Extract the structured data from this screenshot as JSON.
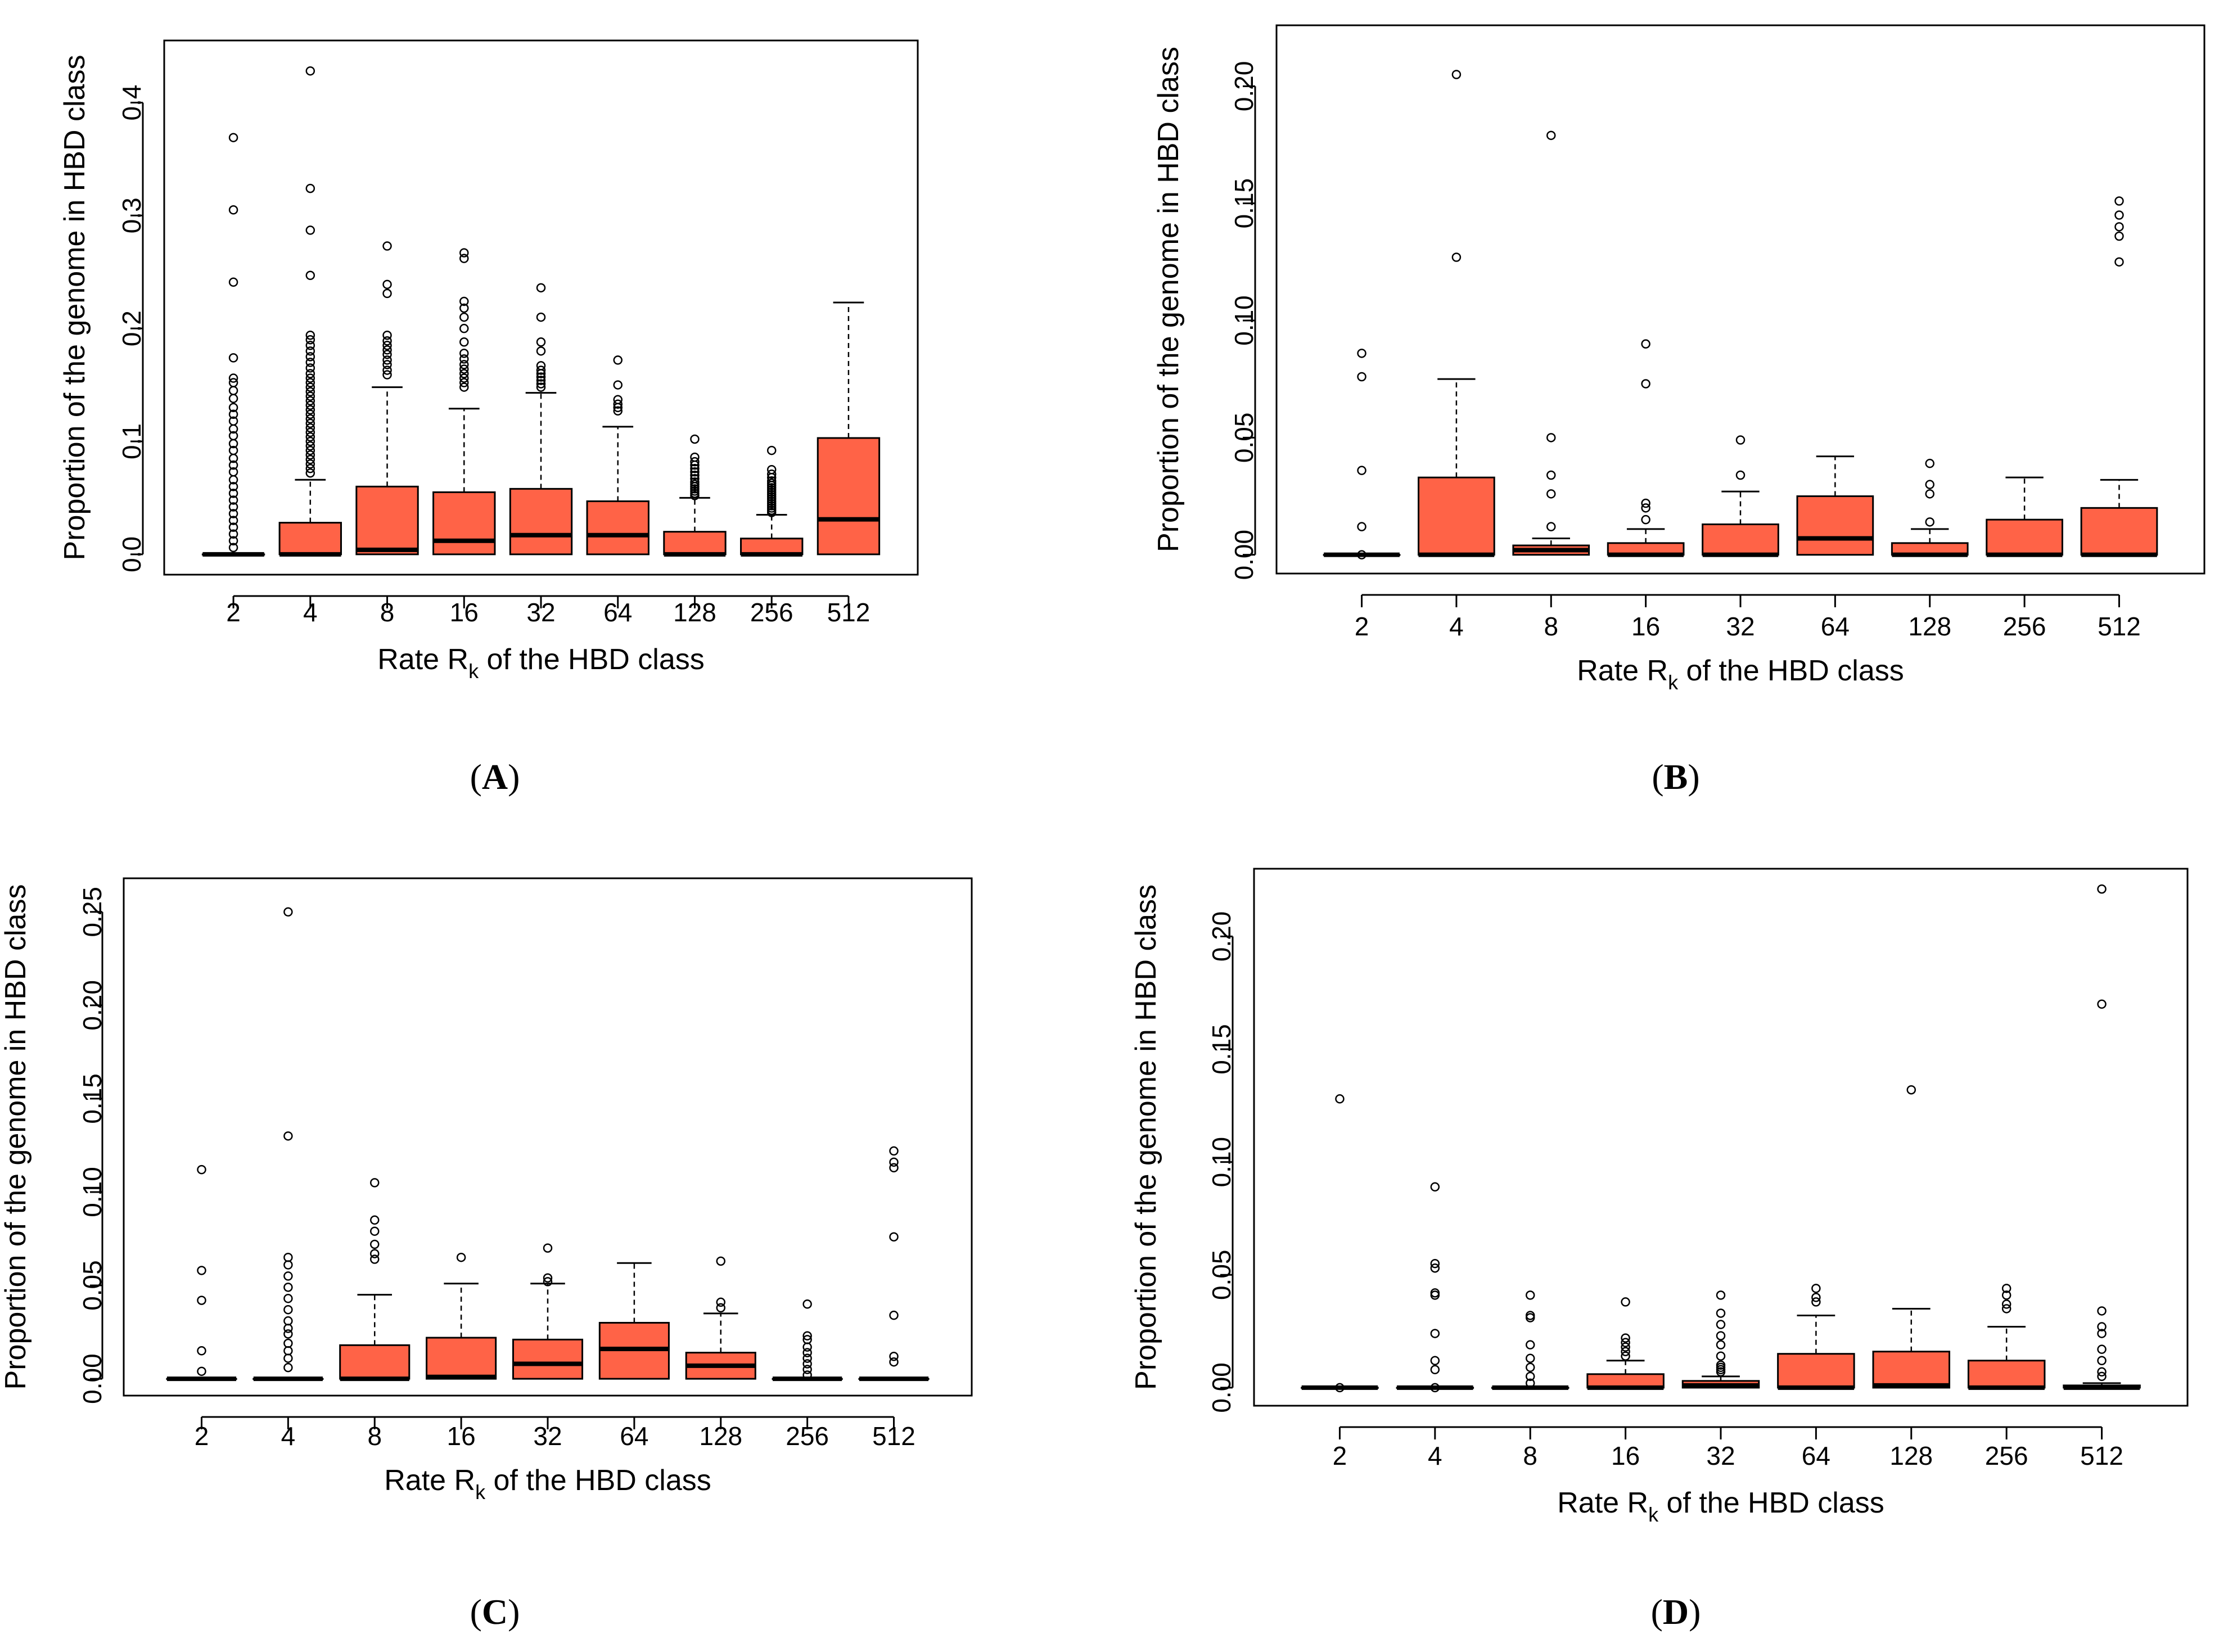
{
  "chart_data": [
    {
      "panel": "A",
      "type": "boxplot",
      "categories": [
        "2",
        "4",
        "8",
        "16",
        "32",
        "64",
        "128",
        "256",
        "512"
      ],
      "xlabel_main": "Rate R",
      "xlabel_sub": "k",
      "xlabel_rest": " of the HBD class",
      "ylabel": "Proportion of the genome in HBD class",
      "ylim": [
        -0.018,
        0.455
      ],
      "yticks": [
        0.0,
        0.1,
        0.2,
        0.3,
        0.4
      ],
      "ytick_labels": [
        "0.0",
        "0.1",
        "0.2",
        "0.3",
        "0.4"
      ],
      "boxes": [
        {
          "q1": 0.0,
          "median": 0.0,
          "q3": 0.0,
          "whisker_low": 0.0,
          "whisker_high": 0.0,
          "outliers": [
            0.369,
            0.305,
            0.241,
            0.174,
            0.156,
            0.152,
            0.145,
            0.138,
            0.13,
            0.124,
            0.118,
            0.111,
            0.105,
            0.098,
            0.092,
            0.085,
            0.079,
            0.073,
            0.066,
            0.06,
            0.054,
            0.048,
            0.042,
            0.036,
            0.03,
            0.024,
            0.018,
            0.012,
            0.006
          ]
        },
        {
          "q1": 0.0,
          "median": 0.0,
          "q3": 0.028,
          "whisker_low": 0.0,
          "whisker_high": 0.066,
          "outliers": [
            0.428,
            0.324,
            0.287,
            0.247,
            0.194,
            0.19,
            0.185,
            0.18,
            0.175,
            0.17,
            0.165,
            0.16,
            0.156,
            0.152,
            0.148,
            0.144,
            0.14,
            0.136,
            0.132,
            0.128,
            0.124,
            0.12,
            0.116,
            0.112,
            0.108,
            0.104,
            0.1,
            0.096,
            0.092,
            0.088,
            0.084,
            0.08,
            0.076,
            0.072
          ]
        },
        {
          "q1": 0.0,
          "median": 0.004,
          "q3": 0.06,
          "whisker_low": 0.0,
          "whisker_high": 0.148,
          "outliers": [
            0.273,
            0.239,
            0.231,
            0.194,
            0.189,
            0.185,
            0.181,
            0.177,
            0.172,
            0.168,
            0.163,
            0.159
          ]
        },
        {
          "q1": 0.0,
          "median": 0.012,
          "q3": 0.055,
          "whisker_low": 0.0,
          "whisker_high": 0.129,
          "outliers": [
            0.267,
            0.262,
            0.224,
            0.218,
            0.21,
            0.2,
            0.188,
            0.178,
            0.173,
            0.168,
            0.164,
            0.16,
            0.156,
            0.152,
            0.148
          ]
        },
        {
          "q1": 0.0,
          "median": 0.017,
          "q3": 0.058,
          "whisker_low": 0.0,
          "whisker_high": 0.143,
          "outliers": [
            0.236,
            0.21,
            0.188,
            0.18,
            0.167,
            0.163,
            0.16,
            0.157,
            0.154,
            0.151,
            0.148
          ]
        },
        {
          "q1": 0.0,
          "median": 0.017,
          "q3": 0.047,
          "whisker_low": 0.0,
          "whisker_high": 0.113,
          "outliers": [
            0.172,
            0.15,
            0.137,
            0.133,
            0.13,
            0.127
          ]
        },
        {
          "q1": 0.0,
          "median": 0.0,
          "q3": 0.02,
          "whisker_low": 0.0,
          "whisker_high": 0.05,
          "outliers": [
            0.102,
            0.086,
            0.082,
            0.079,
            0.076,
            0.073,
            0.07,
            0.067,
            0.064,
            0.062,
            0.06,
            0.058,
            0.056,
            0.054,
            0.052
          ]
        },
        {
          "q1": 0.0,
          "median": 0.0,
          "q3": 0.014,
          "whisker_low": 0.0,
          "whisker_high": 0.035,
          "outliers": [
            0.092,
            0.075,
            0.071,
            0.068,
            0.065,
            0.063,
            0.061,
            0.059,
            0.057,
            0.055,
            0.053,
            0.051,
            0.049,
            0.047,
            0.045,
            0.043,
            0.041,
            0.039,
            0.037
          ]
        },
        {
          "q1": 0.0,
          "median": 0.031,
          "q3": 0.103,
          "whisker_low": 0.0,
          "whisker_high": 0.223,
          "outliers": []
        }
      ]
    },
    {
      "panel": "B",
      "type": "boxplot",
      "categories": [
        "2",
        "4",
        "8",
        "16",
        "32",
        "64",
        "128",
        "256",
        "512"
      ],
      "xlabel_main": "Rate R",
      "xlabel_sub": "k",
      "xlabel_rest": " of the HBD class",
      "ylabel": "Proportion of the genome in HBD class",
      "ylim": [
        -0.008,
        0.226
      ],
      "yticks": [
        0.0,
        0.05,
        0.1,
        0.15,
        0.2
      ],
      "ytick_labels": [
        "0.00",
        "0.05",
        "0.10",
        "0.15",
        "0.20"
      ],
      "boxes": [
        {
          "q1": 0.0,
          "median": 0.0,
          "q3": 0.0,
          "whisker_low": 0.0,
          "whisker_high": 0.0,
          "outliers": [
            0.086,
            0.076,
            0.036,
            0.012,
            0.0
          ]
        },
        {
          "q1": 0.0,
          "median": 0.0,
          "q3": 0.033,
          "whisker_low": 0.0,
          "whisker_high": 0.075,
          "outliers": [
            0.205,
            0.127
          ]
        },
        {
          "q1": 0.0,
          "median": 0.002,
          "q3": 0.004,
          "whisker_low": 0.0,
          "whisker_high": 0.007,
          "outliers": [
            0.179,
            0.05,
            0.034,
            0.026,
            0.012
          ]
        },
        {
          "q1": 0.0,
          "median": 0.0,
          "q3": 0.005,
          "whisker_low": 0.0,
          "whisker_high": 0.011,
          "outliers": [
            0.09,
            0.073,
            0.022,
            0.02,
            0.015
          ]
        },
        {
          "q1": 0.0,
          "median": 0.0,
          "q3": 0.013,
          "whisker_low": 0.0,
          "whisker_high": 0.027,
          "outliers": [
            0.049,
            0.034
          ]
        },
        {
          "q1": 0.0,
          "median": 0.007,
          "q3": 0.025,
          "whisker_low": 0.0,
          "whisker_high": 0.042,
          "outliers": []
        },
        {
          "q1": 0.0,
          "median": 0.0,
          "q3": 0.005,
          "whisker_low": 0.0,
          "whisker_high": 0.011,
          "outliers": [
            0.039,
            0.03,
            0.026,
            0.014
          ]
        },
        {
          "q1": 0.0,
          "median": 0.0,
          "q3": 0.015,
          "whisker_low": 0.0,
          "whisker_high": 0.033,
          "outliers": []
        },
        {
          "q1": 0.0,
          "median": 0.0,
          "q3": 0.02,
          "whisker_low": 0.0,
          "whisker_high": 0.032,
          "outliers": [
            0.151,
            0.145,
            0.14,
            0.136,
            0.125
          ]
        }
      ]
    },
    {
      "panel": "C",
      "type": "boxplot",
      "categories": [
        "2",
        "4",
        "8",
        "16",
        "32",
        "64",
        "128",
        "256",
        "512"
      ],
      "xlabel_main": "Rate R",
      "xlabel_sub": "k",
      "xlabel_rest": " of the HBD class",
      "ylabel": "Proportion of the genome in HBD class",
      "ylim": [
        -0.009,
        0.268
      ],
      "yticks": [
        0.0,
        0.05,
        0.1,
        0.15,
        0.2,
        0.25
      ],
      "ytick_labels": [
        "0.00",
        "0.05",
        "0.10",
        "0.15",
        "0.20",
        "0.25"
      ],
      "boxes": [
        {
          "q1": 0.0,
          "median": 0.0,
          "q3": 0.0,
          "whisker_low": 0.0,
          "whisker_high": 0.0,
          "outliers": [
            0.112,
            0.058,
            0.042,
            0.015,
            0.004
          ]
        },
        {
          "q1": 0.0,
          "median": 0.0,
          "q3": 0.0,
          "whisker_low": 0.0,
          "whisker_high": 0.0,
          "outliers": [
            0.25,
            0.13,
            0.065,
            0.061,
            0.055,
            0.049,
            0.043,
            0.037,
            0.031,
            0.027,
            0.024,
            0.019,
            0.015,
            0.011,
            0.006
          ]
        },
        {
          "q1": 0.0,
          "median": 0.0,
          "q3": 0.018,
          "whisker_low": 0.0,
          "whisker_high": 0.045,
          "outliers": [
            0.105,
            0.085,
            0.079,
            0.072,
            0.067,
            0.064
          ]
        },
        {
          "q1": 0.0,
          "median": 0.001,
          "q3": 0.022,
          "whisker_low": 0.0,
          "whisker_high": 0.051,
          "outliers": [
            0.065
          ]
        },
        {
          "q1": 0.0,
          "median": 0.008,
          "q3": 0.021,
          "whisker_low": 0.0,
          "whisker_high": 0.051,
          "outliers": [
            0.07,
            0.054,
            0.052
          ]
        },
        {
          "q1": 0.0,
          "median": 0.016,
          "q3": 0.03,
          "whisker_low": 0.0,
          "whisker_high": 0.062,
          "outliers": []
        },
        {
          "q1": 0.0,
          "median": 0.007,
          "q3": 0.014,
          "whisker_low": 0.0,
          "whisker_high": 0.035,
          "outliers": [
            0.063,
            0.041,
            0.038
          ]
        },
        {
          "q1": 0.0,
          "median": 0.0,
          "q3": 0.0,
          "whisker_low": 0.0,
          "whisker_high": 0.0,
          "outliers": [
            0.04,
            0.023,
            0.021,
            0.017,
            0.014,
            0.011,
            0.008,
            0.005,
            0.002
          ]
        },
        {
          "q1": 0.0,
          "median": 0.0,
          "q3": 0.0,
          "whisker_low": 0.0,
          "whisker_high": 0.0,
          "outliers": [
            0.122,
            0.116,
            0.113,
            0.076,
            0.034,
            0.012,
            0.009
          ]
        }
      ]
    },
    {
      "panel": "D",
      "type": "boxplot",
      "categories": [
        "2",
        "4",
        "8",
        "16",
        "32",
        "64",
        "128",
        "256",
        "512"
      ],
      "xlabel_main": "Rate R",
      "xlabel_sub": "k",
      "xlabel_rest": " of the HBD class",
      "ylabel": "Proportion of the genome in HBD class",
      "ylim": [
        -0.008,
        0.23
      ],
      "yticks": [
        0.0,
        0.05,
        0.1,
        0.15,
        0.2
      ],
      "ytick_labels": [
        "0.00",
        "0.05",
        "0.10",
        "0.15",
        "0.20"
      ],
      "boxes": [
        {
          "q1": 0.0,
          "median": 0.0,
          "q3": 0.0,
          "whisker_low": 0.0,
          "whisker_high": 0.0,
          "outliers": [
            0.128,
            0.0
          ]
        },
        {
          "q1": 0.0,
          "median": 0.0,
          "q3": 0.0,
          "whisker_low": 0.0,
          "whisker_high": 0.0,
          "outliers": [
            0.089,
            0.055,
            0.053,
            0.042,
            0.041,
            0.024,
            0.012,
            0.008,
            0.0
          ]
        },
        {
          "q1": 0.0,
          "median": 0.0,
          "q3": 0.0,
          "whisker_low": 0.0,
          "whisker_high": 0.0,
          "outliers": [
            0.041,
            0.032,
            0.031,
            0.019,
            0.013,
            0.009,
            0.005,
            0.002
          ]
        },
        {
          "q1": 0.0,
          "median": 0.0,
          "q3": 0.006,
          "whisker_low": 0.0,
          "whisker_high": 0.012,
          "outliers": [
            0.038,
            0.022,
            0.02,
            0.018,
            0.016,
            0.014
          ]
        },
        {
          "q1": 0.0,
          "median": 0.001,
          "q3": 0.003,
          "whisker_low": 0.0,
          "whisker_high": 0.005,
          "outliers": [
            0.041,
            0.033,
            0.028,
            0.023,
            0.019,
            0.014,
            0.01,
            0.009,
            0.008,
            0.007
          ]
        },
        {
          "q1": 0.0,
          "median": 0.0,
          "q3": 0.015,
          "whisker_low": 0.0,
          "whisker_high": 0.032,
          "outliers": [
            0.044,
            0.04,
            0.038
          ]
        },
        {
          "q1": 0.0,
          "median": 0.001,
          "q3": 0.016,
          "whisker_low": 0.0,
          "whisker_high": 0.035,
          "outliers": [
            0.132
          ]
        },
        {
          "q1": 0.0,
          "median": 0.0,
          "q3": 0.012,
          "whisker_low": 0.0,
          "whisker_high": 0.027,
          "outliers": [
            0.044,
            0.041,
            0.037,
            0.035
          ]
        },
        {
          "q1": 0.0,
          "median": 0.0,
          "q3": 0.001,
          "whisker_low": 0.0,
          "whisker_high": 0.002,
          "outliers": [
            0.221,
            0.17,
            0.034,
            0.027,
            0.024,
            0.017,
            0.012,
            0.007,
            0.005
          ]
        }
      ]
    }
  ],
  "captions": {
    "A": "A",
    "B": "B",
    "C": "C",
    "D": "D"
  },
  "colors": {
    "box_fill": "#ff6347",
    "line": "#000000"
  }
}
